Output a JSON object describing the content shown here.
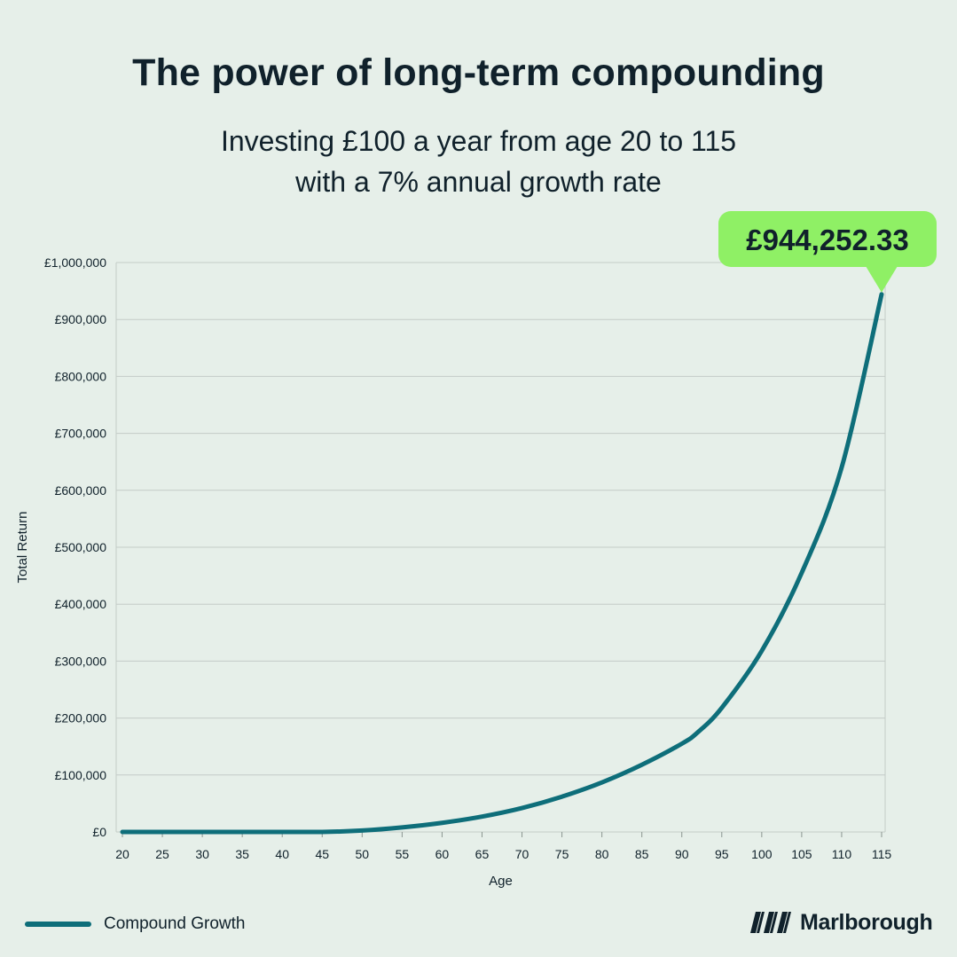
{
  "header": {
    "title": "The power of long-term compounding",
    "subtitle_line1": "Investing £100 a year from age 20 to 115",
    "subtitle_line2": "with a 7% annual growth rate"
  },
  "brand": {
    "name": "Marlborough",
    "icon": "marlborough-logo-icon"
  },
  "colors": {
    "background": "#e6efe9",
    "line": "#0e6e7a",
    "callout": "#8ff065",
    "text": "#10212b",
    "grid": "#c4ccc8"
  },
  "chart_data": {
    "type": "line",
    "title": "",
    "xlabel": "Age",
    "ylabel": "Total Return",
    "xlim": [
      20,
      115
    ],
    "ylim": [
      0,
      1000000
    ],
    "xticks": [
      20,
      25,
      30,
      35,
      40,
      45,
      50,
      55,
      60,
      65,
      70,
      75,
      80,
      85,
      90,
      95,
      100,
      105,
      110,
      115
    ],
    "yticks": [
      0,
      100000,
      200000,
      300000,
      400000,
      500000,
      600000,
      700000,
      800000,
      900000,
      1000000
    ],
    "ytick_labels": [
      "£0",
      "£100,000",
      "£200,000",
      "£300,000",
      "£400,000",
      "£500,000",
      "£600,000",
      "£700,000",
      "£800,000",
      "£900,000",
      "£1,000,000"
    ],
    "grid": true,
    "legend_position": "bottom-left",
    "series": [
      {
        "name": "Compound Growth",
        "x": [
          20,
          25,
          30,
          35,
          40,
          45,
          50,
          55,
          60,
          65,
          70,
          75,
          80,
          85,
          90,
          92,
          95,
          100,
          105,
          110,
          115
        ],
        "y": [
          0,
          0,
          0,
          0,
          0,
          0,
          2500,
          8000,
          16000,
          27000,
          42000,
          62000,
          87000,
          118000,
          155000,
          175000,
          218000,
          318000,
          455000,
          640000,
          944252.33
        ]
      }
    ],
    "annotation": {
      "x": 115,
      "y": 944252.33,
      "label": "£944,252.33"
    }
  }
}
